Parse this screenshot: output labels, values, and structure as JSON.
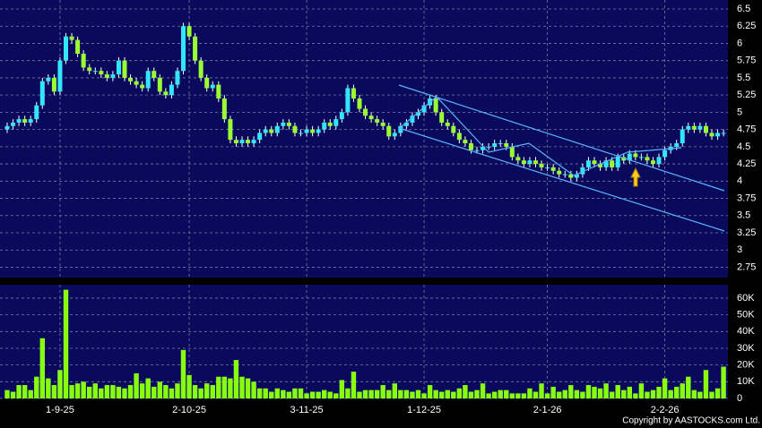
{
  "chart_data": {
    "type": "candlestick",
    "categories": [
      null,
      null,
      null,
      null,
      null,
      null,
      null,
      null,
      null,
      "1-9-25",
      null,
      null,
      null,
      null,
      null,
      null,
      null,
      null,
      null,
      null,
      null,
      null,
      null,
      null,
      null,
      null,
      null,
      null,
      null,
      null,
      null,
      "2-10-25",
      null,
      null,
      null,
      null,
      null,
      null,
      null,
      null,
      null,
      null,
      null,
      null,
      null,
      null,
      null,
      null,
      null,
      null,
      null,
      "3-11-25",
      null,
      null,
      null,
      null,
      null,
      null,
      null,
      null,
      null,
      null,
      null,
      null,
      null,
      null,
      null,
      null,
      null,
      null,
      null,
      "1-12-25",
      null,
      null,
      null,
      null,
      null,
      null,
      null,
      null,
      null,
      null,
      null,
      null,
      null,
      null,
      null,
      null,
      null,
      null,
      null,
      null,
      "2-1-26",
      null,
      null,
      null,
      null,
      null,
      null,
      null,
      null,
      null,
      null,
      null,
      null,
      null,
      null,
      null,
      null,
      null,
      null,
      null,
      "2-2-26",
      null,
      null,
      null,
      null,
      null,
      null,
      null,
      null,
      null,
      null
    ],
    "open": [
      4.75,
      4.8,
      4.85,
      4.9,
      4.85,
      4.9,
      5.1,
      5.45,
      5.5,
      5.3,
      5.75,
      6.1,
      6.05,
      5.85,
      5.65,
      5.6,
      5.6,
      5.55,
      5.5,
      5.55,
      5.75,
      5.5,
      5.45,
      5.4,
      5.35,
      5.6,
      5.5,
      5.3,
      5.25,
      5.4,
      5.6,
      6.25,
      6.1,
      5.75,
      5.5,
      5.35,
      5.4,
      5.2,
      4.9,
      4.6,
      4.55,
      4.6,
      4.55,
      4.6,
      4.7,
      4.75,
      4.7,
      4.8,
      4.85,
      4.8,
      4.7,
      4.7,
      4.75,
      4.7,
      4.75,
      4.85,
      4.8,
      4.9,
      5.0,
      5.35,
      5.2,
      5.05,
      4.95,
      4.9,
      4.85,
      4.8,
      4.65,
      4.7,
      4.8,
      4.85,
      4.95,
      5.0,
      5.1,
      5.2,
      5.0,
      4.85,
      4.8,
      4.7,
      4.6,
      4.55,
      4.45,
      4.45,
      4.5,
      4.5,
      4.55,
      4.55,
      4.5,
      4.35,
      4.3,
      4.25,
      4.3,
      4.25,
      4.2,
      4.2,
      4.15,
      4.1,
      4.1,
      4.05,
      4.1,
      4.2,
      4.3,
      4.25,
      4.2,
      4.3,
      4.2,
      4.35,
      4.3,
      4.4,
      4.35,
      4.35,
      4.3,
      4.25,
      4.35,
      4.45,
      4.5,
      4.55,
      4.75,
      4.8,
      4.75,
      4.8,
      4.7,
      4.65,
      4.7
    ],
    "high": [
      4.85,
      4.9,
      4.95,
      4.95,
      4.95,
      5.15,
      5.5,
      5.55,
      5.55,
      5.8,
      6.15,
      6.15,
      6.1,
      5.9,
      5.7,
      5.65,
      5.65,
      5.6,
      5.6,
      5.8,
      5.8,
      5.55,
      5.5,
      5.45,
      5.65,
      5.65,
      5.55,
      5.35,
      5.45,
      5.65,
      6.3,
      6.3,
      6.15,
      5.8,
      5.55,
      5.45,
      5.45,
      5.25,
      4.95,
      4.65,
      4.65,
      4.65,
      4.65,
      4.75,
      4.8,
      4.8,
      4.85,
      4.9,
      4.9,
      4.85,
      4.75,
      4.8,
      4.8,
      4.8,
      4.9,
      4.9,
      4.95,
      5.05,
      5.4,
      5.4,
      5.25,
      5.1,
      5.0,
      4.95,
      4.9,
      4.85,
      4.75,
      4.85,
      4.9,
      5.0,
      5.05,
      5.15,
      5.25,
      5.25,
      5.05,
      4.9,
      4.85,
      4.75,
      4.65,
      4.6,
      4.5,
      4.55,
      4.55,
      4.6,
      4.6,
      4.6,
      4.55,
      4.4,
      4.35,
      4.35,
      4.35,
      4.3,
      4.25,
      4.25,
      4.2,
      4.15,
      4.15,
      4.15,
      4.25,
      4.35,
      4.35,
      4.3,
      4.35,
      4.35,
      4.4,
      4.4,
      4.45,
      4.45,
      4.4,
      4.4,
      4.35,
      4.4,
      4.5,
      4.55,
      4.6,
      4.8,
      4.85,
      4.85,
      4.85,
      4.85,
      4.75,
      4.75,
      4.75
    ],
    "low": [
      4.7,
      4.75,
      4.8,
      4.8,
      4.8,
      4.85,
      5.05,
      5.4,
      5.25,
      5.25,
      5.7,
      6.0,
      5.8,
      5.6,
      5.55,
      5.55,
      5.5,
      5.45,
      5.45,
      5.5,
      5.45,
      5.4,
      5.35,
      5.3,
      5.3,
      5.45,
      5.25,
      5.2,
      5.2,
      5.35,
      5.55,
      6.05,
      5.7,
      5.45,
      5.3,
      5.3,
      5.15,
      4.85,
      4.55,
      4.5,
      4.5,
      4.5,
      4.5,
      4.55,
      4.65,
      4.65,
      4.65,
      4.75,
      4.75,
      4.65,
      4.65,
      4.65,
      4.65,
      4.65,
      4.7,
      4.75,
      4.75,
      4.85,
      4.95,
      5.15,
      5.0,
      4.9,
      4.85,
      4.8,
      4.75,
      4.6,
      4.6,
      4.65,
      4.75,
      4.8,
      4.9,
      4.95,
      5.05,
      4.95,
      4.8,
      4.75,
      4.65,
      4.55,
      4.5,
      4.4,
      4.4,
      4.4,
      4.45,
      4.45,
      4.5,
      4.45,
      4.3,
      4.25,
      4.2,
      4.2,
      4.2,
      4.15,
      4.15,
      4.1,
      4.05,
      4.05,
      4.0,
      4.0,
      4.05,
      4.15,
      4.2,
      4.15,
      4.15,
      4.15,
      4.15,
      4.25,
      4.25,
      4.3,
      4.3,
      4.25,
      4.2,
      4.2,
      4.3,
      4.4,
      4.45,
      4.5,
      4.7,
      4.7,
      4.7,
      4.65,
      4.6,
      4.6,
      4.65
    ],
    "close": [
      4.8,
      4.85,
      4.9,
      4.85,
      4.9,
      5.1,
      5.45,
      5.5,
      5.3,
      5.75,
      6.1,
      6.05,
      5.85,
      5.65,
      5.6,
      5.6,
      5.55,
      5.5,
      5.55,
      5.75,
      5.5,
      5.45,
      5.4,
      5.35,
      5.6,
      5.5,
      5.3,
      5.25,
      5.4,
      5.6,
      6.25,
      6.1,
      5.75,
      5.5,
      5.35,
      5.4,
      5.2,
      4.9,
      4.6,
      4.55,
      4.6,
      4.55,
      4.6,
      4.7,
      4.75,
      4.7,
      4.8,
      4.85,
      4.8,
      4.7,
      4.7,
      4.75,
      4.7,
      4.75,
      4.85,
      4.8,
      4.9,
      5.0,
      5.35,
      5.2,
      5.05,
      4.95,
      4.9,
      4.85,
      4.8,
      4.65,
      4.7,
      4.8,
      4.85,
      4.95,
      5.0,
      5.1,
      5.2,
      5.0,
      4.85,
      4.8,
      4.7,
      4.6,
      4.55,
      4.45,
      4.45,
      4.5,
      4.5,
      4.55,
      4.55,
      4.5,
      4.35,
      4.3,
      4.25,
      4.3,
      4.25,
      4.2,
      4.2,
      4.15,
      4.1,
      4.1,
      4.05,
      4.1,
      4.2,
      4.3,
      4.25,
      4.2,
      4.3,
      4.2,
      4.35,
      4.3,
      4.4,
      4.35,
      4.35,
      4.3,
      4.25,
      4.35,
      4.45,
      4.5,
      4.55,
      4.75,
      4.8,
      4.75,
      4.8,
      4.7,
      4.65,
      4.7,
      4.7
    ],
    "up_color": "#33e6ff",
    "down_color": "#99ff33",
    "ylim": [
      2.6,
      6.63
    ],
    "yticks": [
      6.5,
      6.25,
      6,
      5.75,
      5.5,
      5.25,
      5,
      4.75,
      4.5,
      4.25,
      4,
      3.75,
      3.5,
      3.25,
      3,
      2.75
    ],
    "grid": true,
    "volume": {
      "values": [
        5000,
        4000,
        8000,
        8000,
        5000,
        13000,
        36000,
        12000,
        8000,
        17000,
        65000,
        8000,
        9000,
        10000,
        7000,
        9000,
        6000,
        8000,
        8000,
        7000,
        6000,
        8000,
        15000,
        9000,
        12000,
        7000,
        10000,
        8000,
        6000,
        9000,
        29000,
        14000,
        8000,
        6000,
        9000,
        8000,
        13000,
        13000,
        12000,
        23000,
        13000,
        12000,
        10000,
        6000,
        6000,
        4000,
        6000,
        5000,
        4000,
        6000,
        6000,
        3000,
        4000,
        4000,
        5000,
        4000,
        3000,
        11000,
        6000,
        16000,
        4000,
        5000,
        5000,
        5000,
        8000,
        5000,
        9000,
        5000,
        5000,
        4000,
        5000,
        3000,
        8000,
        5000,
        4000,
        5000,
        4000,
        6000,
        8000,
        4000,
        5000,
        9000,
        3000,
        4000,
        5000,
        5000,
        3000,
        3000,
        3000,
        6000,
        4000,
        9000,
        3000,
        7000,
        4000,
        5000,
        8000,
        5000,
        4000,
        8000,
        7000,
        6000,
        9000,
        4000,
        8000,
        5000,
        7000,
        3000,
        9000,
        4000,
        5000,
        7000,
        12000,
        5000,
        7000,
        9000,
        13000,
        5000,
        4000,
        17000,
        4000,
        6000,
        19000
      ],
      "color": "#88ff11",
      "ylim": [
        0,
        68000
      ],
      "yticks": [
        {
          "value": 60000,
          "label": "60K"
        },
        {
          "value": 50000,
          "label": "50K"
        },
        {
          "value": 40000,
          "label": "40K"
        },
        {
          "value": 30000,
          "label": "30K"
        },
        {
          "value": 20000,
          "label": "20K"
        },
        {
          "value": 10000,
          "label": "10K"
        },
        0
      ]
    },
    "copyright": "Copyright by AASTOCKS.com Ltd."
  }
}
